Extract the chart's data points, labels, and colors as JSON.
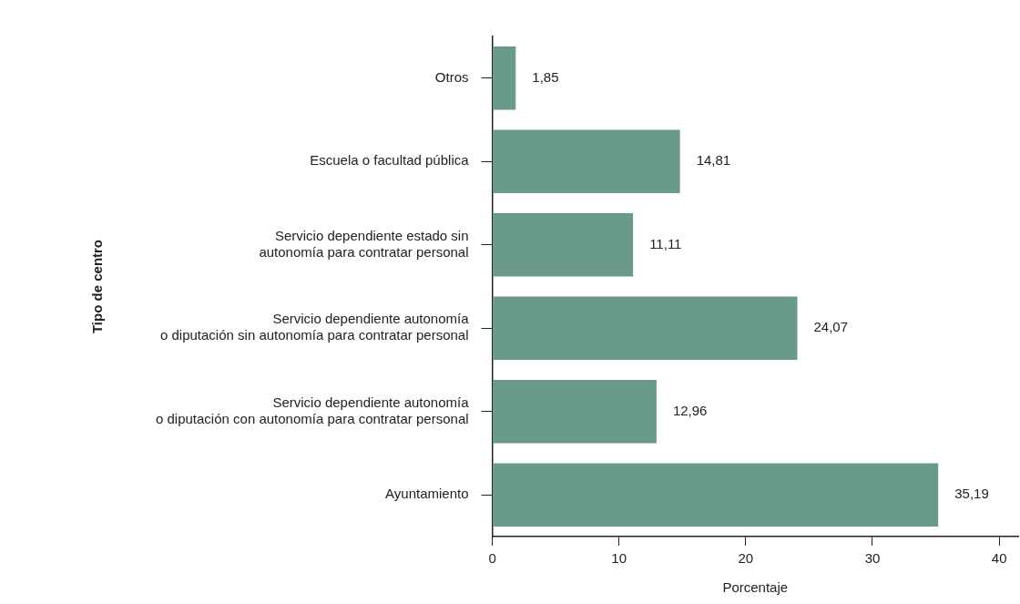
{
  "chart_data": {
    "type": "bar",
    "orientation": "horizontal",
    "xlabel": "Porcentaje",
    "ylabel": "Tipo de centro",
    "categories": [
      "Otros",
      "Escuela o facultad pública",
      "Servicio dependiente estado sin\nautonomía para contratar personal",
      "Servicio dependiente autonomía\no diputación sin autonomía para contratar personal",
      "Servicio dependiente autonomía\no diputación con autonomía para contratar personal",
      "Ayuntamiento"
    ],
    "values": [
      1.85,
      14.81,
      11.11,
      24.07,
      12.96,
      35.19
    ],
    "value_labels": [
      "1,85",
      "14,81",
      "11,11",
      "24,07",
      "12,96",
      "35,19"
    ],
    "color": "#6a9b89",
    "xlim": [
      0,
      41.5
    ],
    "xticks": [
      0,
      10,
      20,
      30,
      40
    ],
    "grid": false,
    "legend": false
  }
}
